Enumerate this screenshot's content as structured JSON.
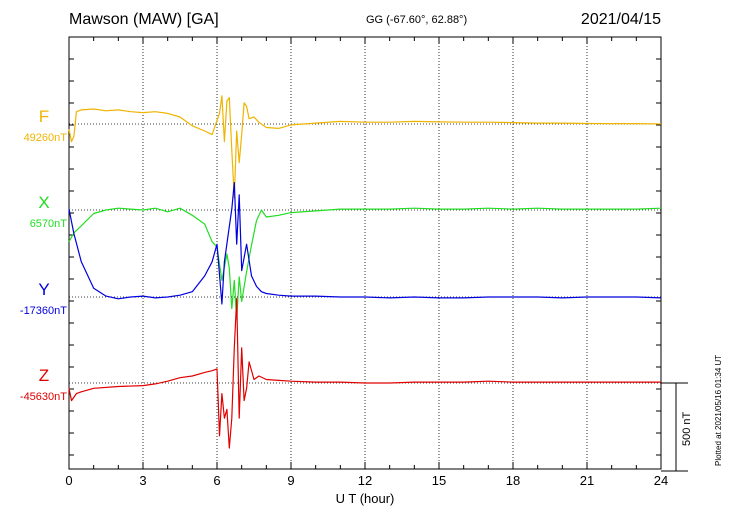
{
  "header": {
    "title": "Mawson (MAW)  [GA]",
    "coords": "GG (-67.60°,  62.88°)",
    "date": "2021/04/15"
  },
  "plotted_note": "Plotted at 2021/05/16 01:34 UT",
  "colors": {
    "F": "#f0b400",
    "X": "#22dd22",
    "Y": "#0000dd",
    "Z": "#e00000"
  },
  "chart_data": {
    "type": "line",
    "title": "Mawson (MAW)  [GA]",
    "xlabel": "U T (hour)",
    "xlim": [
      0,
      24
    ],
    "xticks": [
      "0",
      "3",
      "6",
      "9",
      "12",
      "15",
      "18",
      "21",
      "24"
    ],
    "scale_bar_nT": 500,
    "scale_label": "500 nT",
    "grid": "dotted vertical every 3 h, dotted baseline per component",
    "components": [
      {
        "name": "F",
        "baseline_label": "49260nT",
        "x": [
          0,
          0.1,
          0.2,
          0.3,
          0.5,
          1,
          1.5,
          2,
          2.5,
          3,
          3.5,
          4,
          4.5,
          5,
          5.5,
          5.8,
          6.0,
          6.1,
          6.2,
          6.3,
          6.4,
          6.5,
          6.6,
          6.7,
          6.8,
          6.9,
          7.0,
          7.1,
          7.2,
          7.3,
          7.5,
          7.7,
          8,
          8.5,
          9,
          10,
          11,
          12,
          13,
          14,
          15,
          16,
          17,
          18,
          19,
          20,
          21,
          22,
          23,
          24
        ],
        "y": [
          -30,
          -100,
          -70,
          70,
          80,
          85,
          75,
          80,
          70,
          65,
          70,
          60,
          40,
          -10,
          -40,
          -60,
          20,
          60,
          160,
          -100,
          130,
          150,
          -150,
          -420,
          -40,
          -220,
          -60,
          120,
          100,
          30,
          40,
          10,
          -20,
          -25,
          -5,
          5,
          15,
          10,
          10,
          15,
          12,
          10,
          10,
          8,
          5,
          5,
          3,
          2,
          2,
          0
        ]
      },
      {
        "name": "X",
        "baseline_label": "6570nT",
        "x": [
          0,
          0.2,
          0.5,
          1,
          1.5,
          2,
          2.5,
          3,
          3.5,
          4,
          4.5,
          5,
          5.5,
          5.8,
          6.0,
          6.2,
          6.4,
          6.5,
          6.6,
          6.7,
          6.8,
          6.9,
          7.0,
          7.2,
          7.4,
          7.6,
          7.8,
          8,
          8.5,
          9,
          10,
          11,
          12,
          13,
          14,
          15,
          16,
          17,
          18,
          19,
          20,
          21,
          22,
          23,
          24
        ],
        "y": [
          -180,
          -130,
          -90,
          -20,
          0,
          10,
          5,
          0,
          10,
          -10,
          10,
          -30,
          -80,
          -180,
          -210,
          -400,
          -250,
          -330,
          -560,
          -400,
          -620,
          -380,
          -520,
          -350,
          -200,
          -60,
          0,
          -40,
          -30,
          -15,
          -5,
          5,
          5,
          5,
          10,
          5,
          5,
          10,
          5,
          10,
          5,
          5,
          5,
          5,
          10
        ]
      },
      {
        "name": "Y",
        "baseline_label": "-17360nT",
        "x": [
          0,
          0.2,
          0.5,
          1,
          1.5,
          2,
          2.5,
          3,
          3.5,
          4,
          4.5,
          5,
          5.5,
          5.8,
          6.0,
          6.2,
          6.3,
          6.5,
          6.6,
          6.7,
          6.8,
          6.9,
          7.0,
          7.2,
          7.4,
          7.6,
          7.8,
          8,
          8.5,
          9,
          10,
          11,
          12,
          13,
          14,
          15,
          16,
          17,
          18,
          19,
          20,
          21,
          22,
          23,
          24
        ],
        "y": [
          500,
          360,
          200,
          50,
          5,
          -10,
          0,
          5,
          -5,
          0,
          10,
          30,
          120,
          200,
          300,
          -40,
          200,
          400,
          500,
          650,
          300,
          580,
          150,
          300,
          120,
          60,
          30,
          20,
          10,
          5,
          5,
          0,
          0,
          -5,
          0,
          -5,
          -5,
          0,
          0,
          0,
          -5,
          0,
          0,
          0,
          -5
        ]
      },
      {
        "name": "Z",
        "baseline_label": "-45630nT",
        "x": [
          0,
          0.1,
          0.3,
          0.5,
          1,
          2,
          3,
          3.5,
          4,
          4.5,
          5,
          5.5,
          5.8,
          6.0,
          6.1,
          6.2,
          6.3,
          6.4,
          6.5,
          6.6,
          6.7,
          6.8,
          6.9,
          7.0,
          7.1,
          7.2,
          7.3,
          7.5,
          7.7,
          8,
          8.5,
          9,
          10,
          11,
          12,
          13,
          14,
          15,
          16,
          17,
          18,
          19,
          20,
          21,
          22,
          23,
          24
        ],
        "y": [
          -30,
          -100,
          -60,
          -50,
          -30,
          -20,
          -15,
          -5,
          10,
          30,
          40,
          60,
          70,
          80,
          -300,
          -60,
          -200,
          -150,
          -370,
          -200,
          200,
          480,
          -200,
          200,
          -100,
          -30,
          120,
          20,
          40,
          20,
          15,
          10,
          5,
          5,
          0,
          0,
          5,
          5,
          5,
          10,
          5,
          5,
          5,
          5,
          5,
          5,
          5
        ]
      }
    ]
  }
}
